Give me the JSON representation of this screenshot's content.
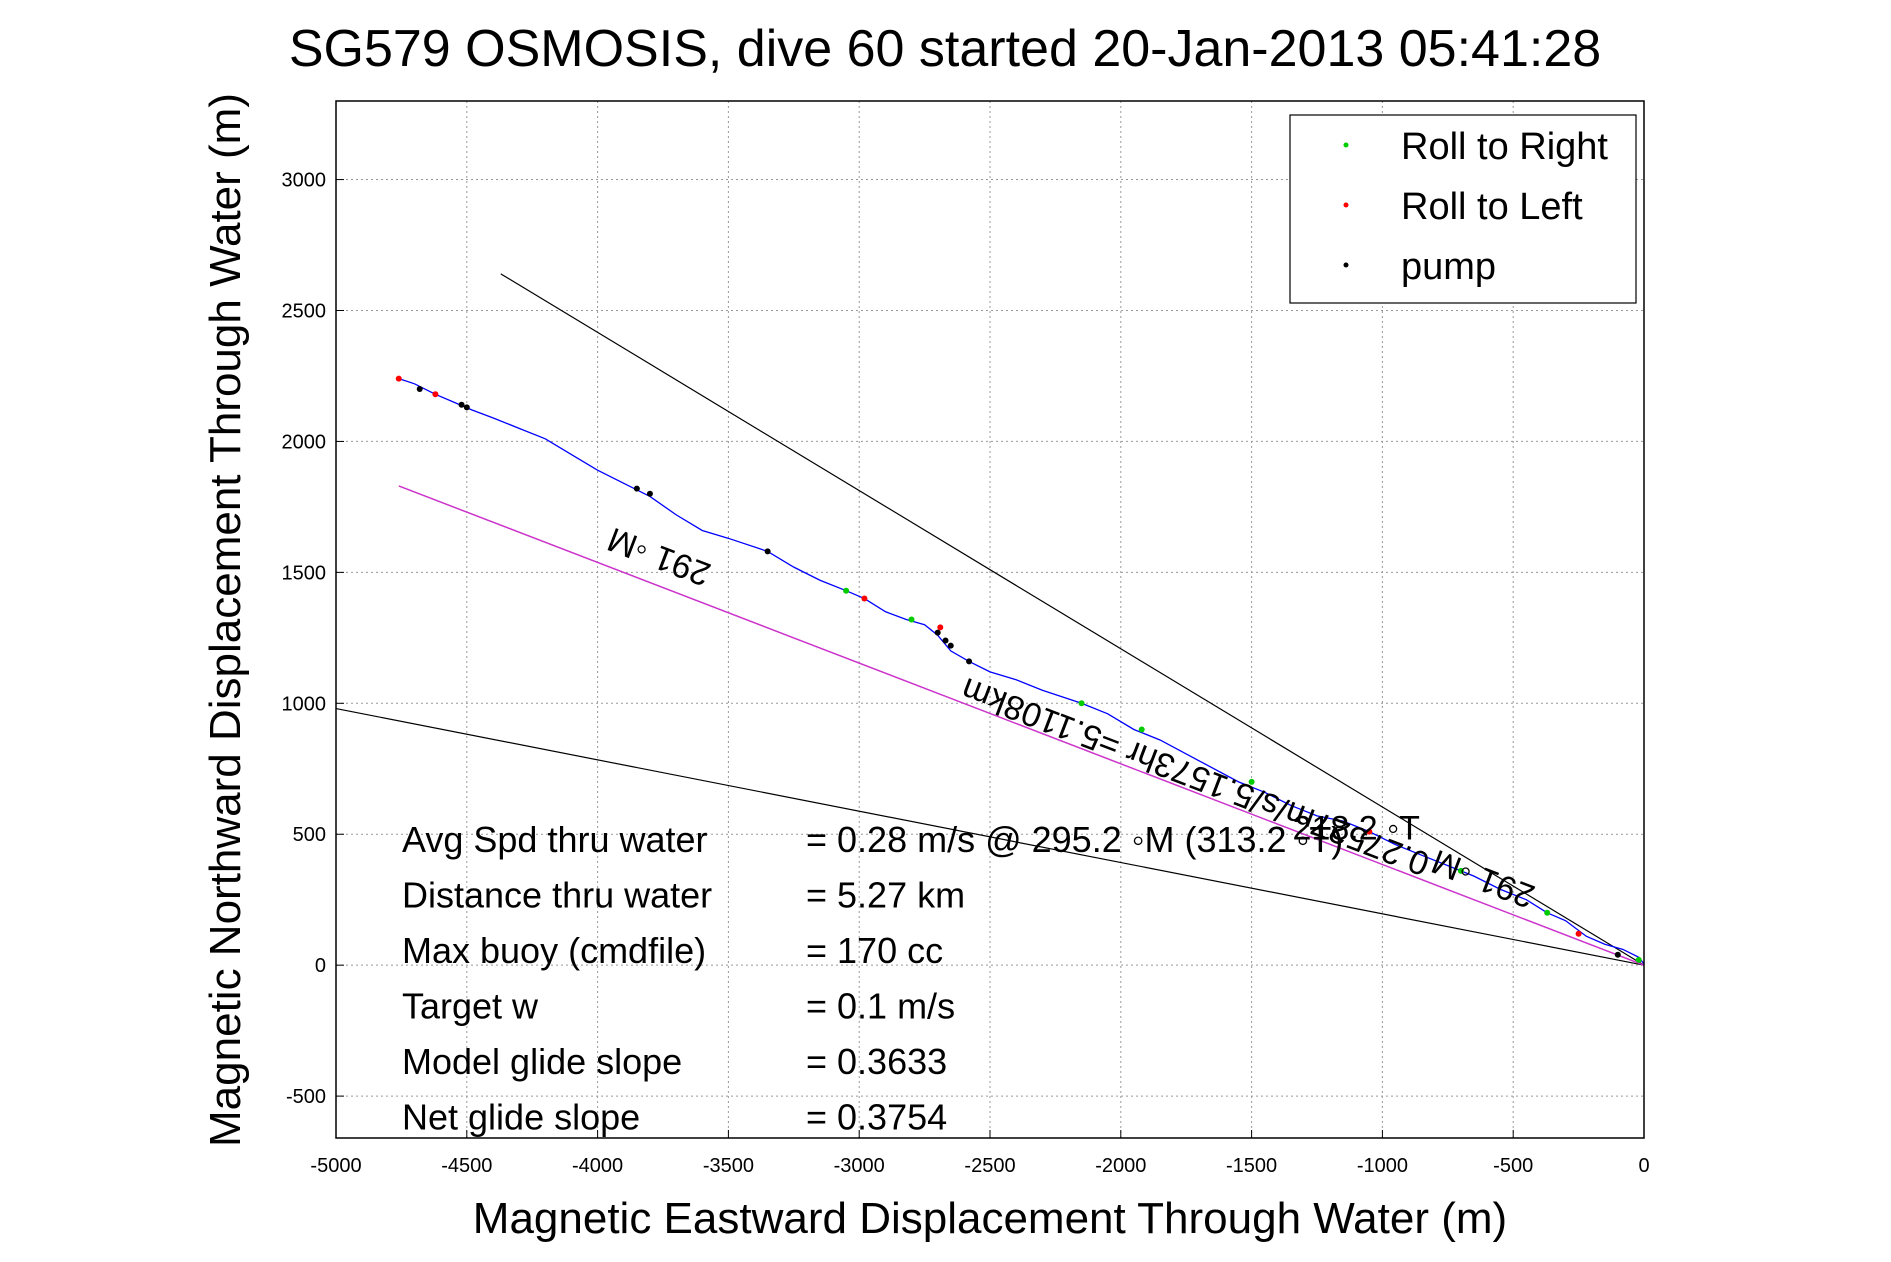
{
  "chart_data": {
    "type": "line",
    "title": "SG579 OSMOSIS, dive 60 started 20-Jan-2013 05:41:28",
    "xlabel": "Magnetic Eastward Displacement Through Water (m)",
    "ylabel": "Magnetic Northward Displacement Through Water (m)",
    "xlim": [
      -5000,
      0
    ],
    "ylim": [
      -660,
      3300
    ],
    "xticks": [
      -5000,
      -4500,
      -4000,
      -3500,
      -3000,
      -2500,
      -2000,
      -1500,
      -1000,
      -500,
      0
    ],
    "yticks": [
      -500,
      0,
      500,
      1000,
      1500,
      2000,
      2500,
      3000
    ],
    "grid": true,
    "legend_position": "top-right",
    "legend": [
      {
        "label": "Roll to Right",
        "color": "#00cc00"
      },
      {
        "label": "Roll to Left",
        "color": "#ff0000"
      },
      {
        "label": "pump",
        "color": "#000000"
      }
    ],
    "track": {
      "color": "#0000ff",
      "x": [
        -4760,
        -4700,
        -4620,
        -4550,
        -4480,
        -4400,
        -4300,
        -4200,
        -4100,
        -4000,
        -3900,
        -3800,
        -3700,
        -3600,
        -3500,
        -3350,
        -3250,
        -3150,
        -3050,
        -2980,
        -2900,
        -2820,
        -2750,
        -2700,
        -2650,
        -2580,
        -2500,
        -2400,
        -2300,
        -2150,
        -2050,
        -1950,
        -1850,
        -1700,
        -1550,
        -1450,
        -1350,
        -1250,
        -1150,
        -1050,
        -950,
        -850,
        -750,
        -650,
        -550,
        -450,
        -370,
        -300,
        -220,
        -150,
        -80,
        -20,
        0
      ],
      "y": [
        2240,
        2220,
        2180,
        2150,
        2120,
        2090,
        2050,
        2010,
        1950,
        1890,
        1840,
        1790,
        1720,
        1660,
        1630,
        1580,
        1520,
        1470,
        1430,
        1400,
        1350,
        1320,
        1300,
        1260,
        1200,
        1160,
        1120,
        1090,
        1050,
        1000,
        960,
        900,
        860,
        780,
        700,
        660,
        610,
        570,
        550,
        510,
        460,
        420,
        380,
        340,
        290,
        250,
        200,
        170,
        110,
        80,
        60,
        30,
        5
      ]
    },
    "roll_right": {
      "x": [
        -3050,
        -2800,
        -2150,
        -1920,
        -1500,
        -700,
        -370,
        -20
      ],
      "y": [
        1430,
        1320,
        1000,
        900,
        700,
        360,
        200,
        20
      ]
    },
    "roll_left": {
      "x": [
        -4760,
        -4620,
        -2980,
        -2690,
        -1050,
        -250
      ],
      "y": [
        2240,
        2180,
        1400,
        1290,
        510,
        120
      ]
    },
    "pump": {
      "x": [
        -4680,
        -4520,
        -4500,
        -3850,
        -3800,
        -3350,
        -2700,
        -2670,
        -2650,
        -2580,
        -100
      ],
      "y": [
        2200,
        2140,
        2130,
        1820,
        1800,
        1580,
        1270,
        1240,
        1220,
        1160,
        40
      ]
    },
    "course_line": {
      "color": "#cc33cc",
      "x": [
        -4760,
        0
      ],
      "y": [
        1830,
        0
      ]
    },
    "bracket_lines": [
      {
        "color": "#000000",
        "x": [
          -4370,
          0
        ],
        "y": [
          2640,
          0
        ]
      },
      {
        "color": "#000000",
        "x": [
          -5000,
          0
        ],
        "y": [
          980,
          0
        ]
      }
    ],
    "annotations": [
      {
        "text": "291 ◦M",
        "x": -3750,
        "y": 1600,
        "angle": 200.9
      },
      {
        "text": "0.27527m/s/5.1573hr =5.1108km",
        "x": -1700,
        "y": 760,
        "angle": 200.9
      },
      {
        "text": "291 ◦M",
        "x": -600,
        "y": 370,
        "angle": 200.9
      },
      {
        "text": "218.2 ◦T",
        "x": -1100,
        "y": 480,
        "angle": 0
      }
    ],
    "stats": [
      {
        "label": "Avg Spd thru water",
        "value": "=  0.28 m/s @ 295.2 ◦M (313.2 ◦T)"
      },
      {
        "label": "Distance thru water",
        "value": "=  5.27 km"
      },
      {
        "label": "Max buoy (cmdfile)",
        "value": "= 170 cc"
      },
      {
        "label": "Target w",
        "value": "= 0.1 m/s"
      },
      {
        "label": "Model glide slope",
        "value": "= 0.3633"
      },
      {
        "label": "Net glide slope",
        "value": "= 0.3754"
      }
    ]
  }
}
